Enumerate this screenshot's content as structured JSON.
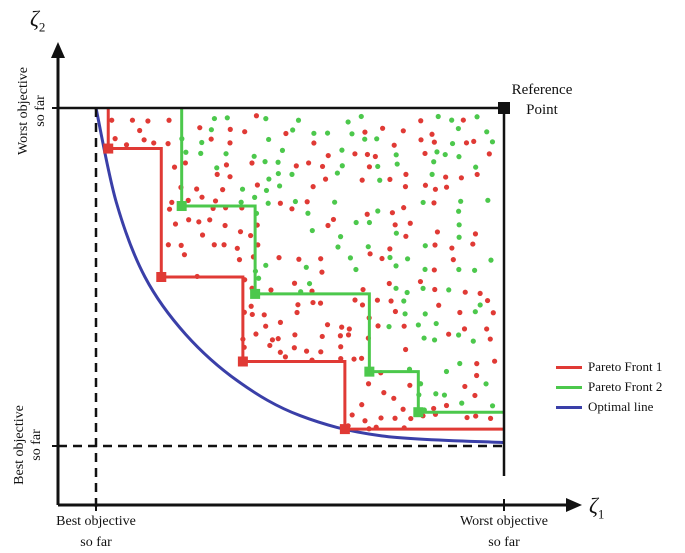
{
  "axes": {
    "x_symbol": "ζ",
    "x_subscript": "1",
    "y_symbol": "ζ",
    "y_subscript": "2",
    "x_best": [
      "Best objective",
      "so far"
    ],
    "x_worst": [
      "Worst objective",
      "so far"
    ],
    "y_worst": [
      "Worst objective",
      "so far"
    ],
    "y_best": [
      "Best objective",
      "so far"
    ]
  },
  "reference_point": [
    "Reference",
    "Point"
  ],
  "legend": [
    {
      "label": "Pareto Front 1",
      "color": "#e03a35"
    },
    {
      "label": "Pareto Front 2",
      "color": "#4cc84c"
    },
    {
      "label": "Optimal line",
      "color": "#3a3fa8"
    }
  ],
  "colors": {
    "front1": "#e03a35",
    "front2": "#4cc84c",
    "optimal": "#3a3fa8",
    "axis": "#111111"
  },
  "chart_data": {
    "type": "scatter",
    "xlim": [
      0,
      1
    ],
    "ylim": [
      0,
      1
    ],
    "reference": [
      1,
      1
    ],
    "best": [
      0,
      0
    ],
    "front1_points": [
      [
        0.03,
        0.88
      ],
      [
        0.16,
        0.5
      ],
      [
        0.36,
        0.25
      ],
      [
        0.61,
        0.05
      ]
    ],
    "front2_points": [
      [
        0.21,
        0.71
      ],
      [
        0.39,
        0.45
      ],
      [
        0.67,
        0.22
      ],
      [
        0.79,
        0.1
      ]
    ],
    "optimal_line": [
      [
        0,
        1
      ],
      [
        0.05,
        0.72
      ],
      [
        0.12,
        0.5
      ],
      [
        0.22,
        0.33
      ],
      [
        0.35,
        0.19
      ],
      [
        0.5,
        0.09
      ],
      [
        0.7,
        0.03
      ],
      [
        1,
        0.01
      ]
    ]
  }
}
